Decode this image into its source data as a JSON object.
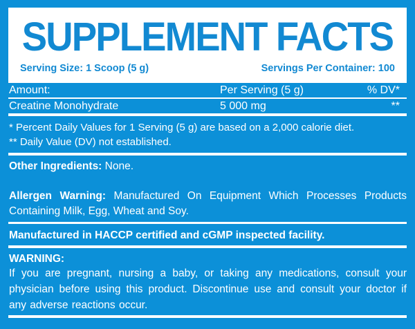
{
  "colors": {
    "frame_blue": "#0C90D8",
    "text_blue": "#1289D2",
    "white": "#FFFFFF"
  },
  "header": {
    "title": "SUPPLEMENT FACTS",
    "serving_size": "Serving Size: 1 Scoop (5 g)",
    "servings_per_container": "Servings Per Container: 100"
  },
  "table": {
    "columns": [
      "Amount:",
      "Per Serving (5 g)",
      "% DV*"
    ],
    "rows": [
      {
        "name": "Creatine Monohydrate",
        "per_serving": "5 000 mg",
        "dv": "**"
      }
    ]
  },
  "footnotes": [
    "* Percent Daily Values for 1 Serving (5 g) are based on a 2,000 calorie diet.",
    "** Daily Value (DV) not established."
  ],
  "other_ingredients": {
    "label": "Other Ingredients:",
    "value": "None."
  },
  "allergen": {
    "label": "Allergen Warning:",
    "text": "Manufactured On Equipment Which Processes Products Containing Milk, Egg, Wheat and Soy."
  },
  "facility": "Manufactured in HACCP certified and cGMP inspected facility.",
  "warning": {
    "label": "WARNING:",
    "text": "If you are pregnant, nursing a baby, or taking any medications, consult your physician before using this product. Discontinue use and consult your doctor if any adverse reactions occur."
  }
}
